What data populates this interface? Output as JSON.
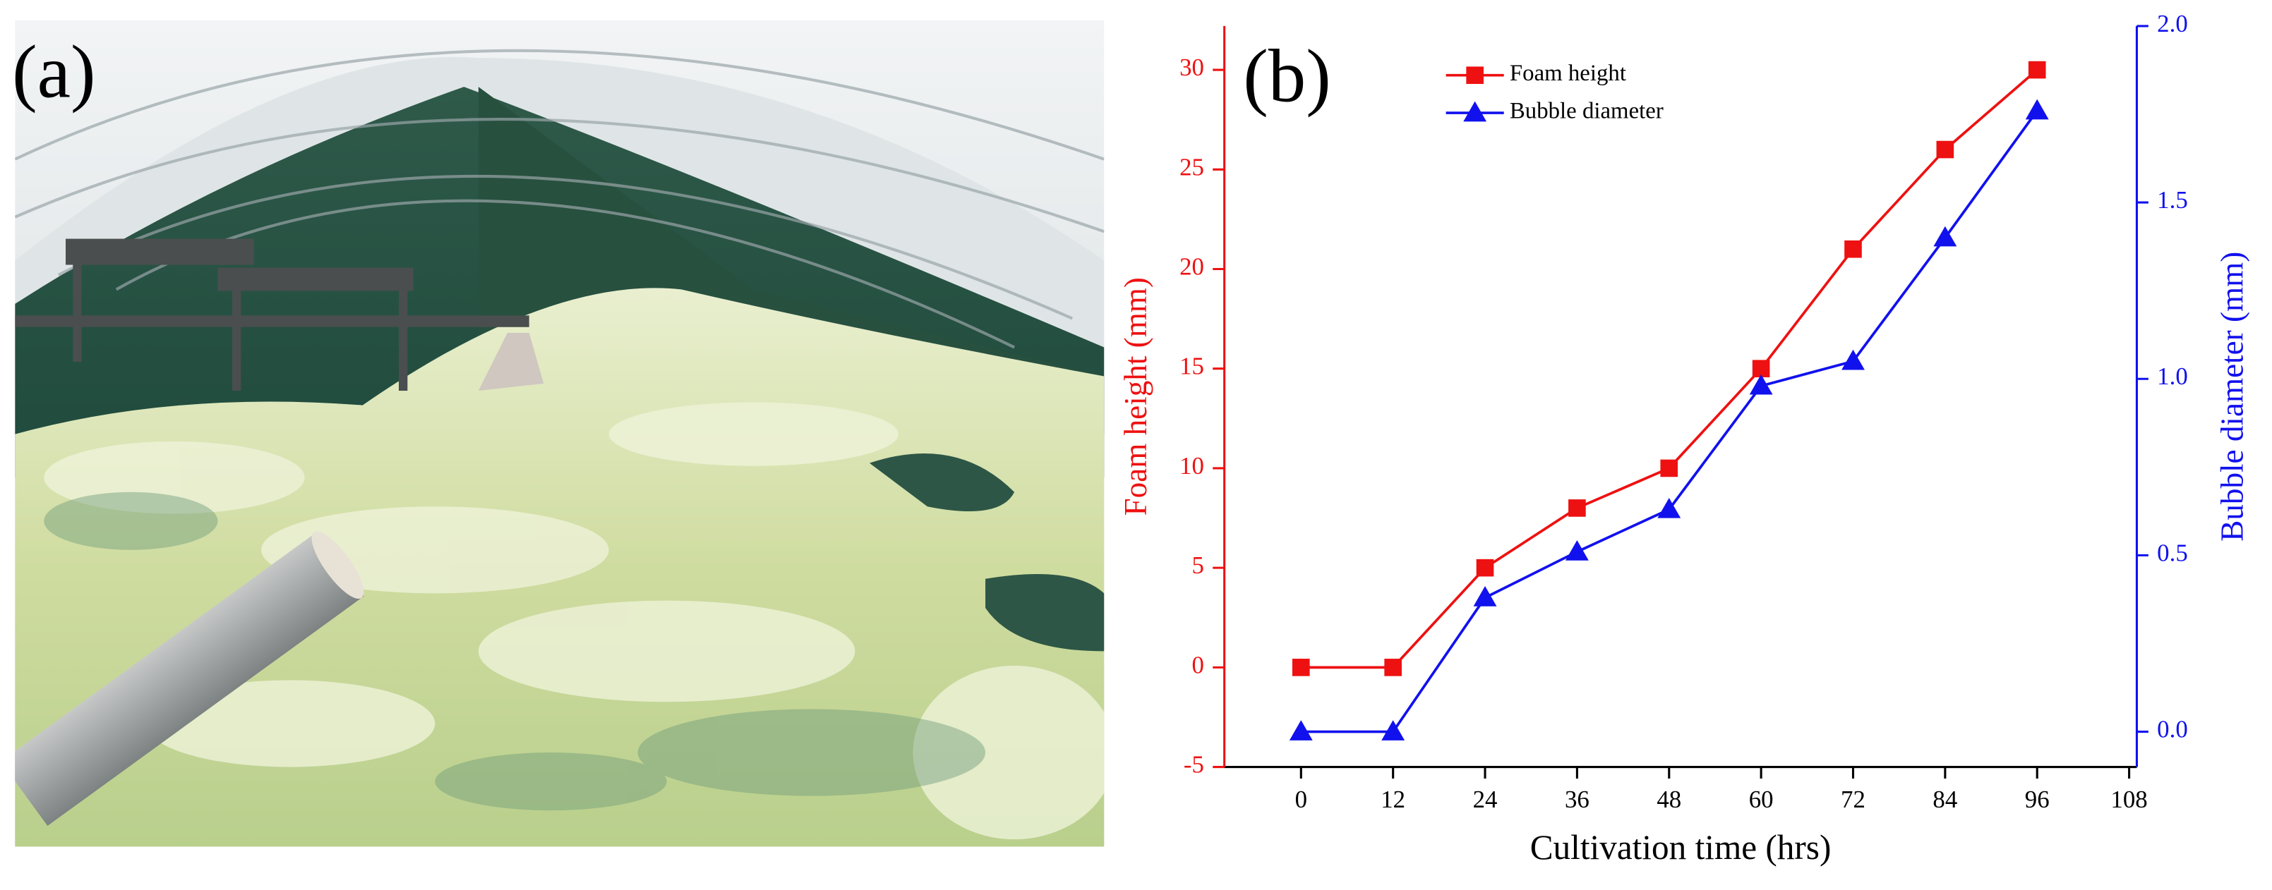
{
  "panel_a_label": "(a)",
  "chart_data": {
    "type": "line",
    "panel_label": "(b)",
    "x_label": "Cultivation time (hrs)",
    "y_label": "Foam height (mm)",
    "y2_label": "Bubble diameter (mm)",
    "x": [
      0,
      12,
      24,
      36,
      48,
      60,
      72,
      84,
      96
    ],
    "series": [
      {
        "name": "Foam height",
        "color": "#ee1111",
        "marker": "square",
        "values": [
          0,
          0,
          5,
          8,
          10,
          15,
          21,
          26,
          30
        ]
      },
      {
        "name": "Bubble diameter",
        "color": "#1111ee",
        "marker": "triangle",
        "axis": "y2",
        "values": [
          0,
          0,
          0.38,
          0.51,
          0.63,
          0.98,
          1.05,
          1.4,
          1.76
        ]
      }
    ],
    "xlim": [
      -10,
      109
    ],
    "xticks": [
      0,
      12,
      24,
      36,
      48,
      60,
      72,
      84,
      96,
      108
    ],
    "ylim": [
      -5,
      32.2
    ],
    "yticks": [
      -5,
      0,
      5,
      10,
      15,
      20,
      25,
      30
    ],
    "y2lim": [
      -0.1,
      2.0
    ],
    "y2ticks": [
      {
        "value": 0,
        "label": "0.0"
      },
      {
        "value": 0.5,
        "label": "0.5"
      },
      {
        "value": 1,
        "label": "1.0"
      },
      {
        "value": 1.5,
        "label": "1.5"
      },
      {
        "value": 2,
        "label": "2.0"
      }
    ],
    "legend": "upper-left"
  }
}
